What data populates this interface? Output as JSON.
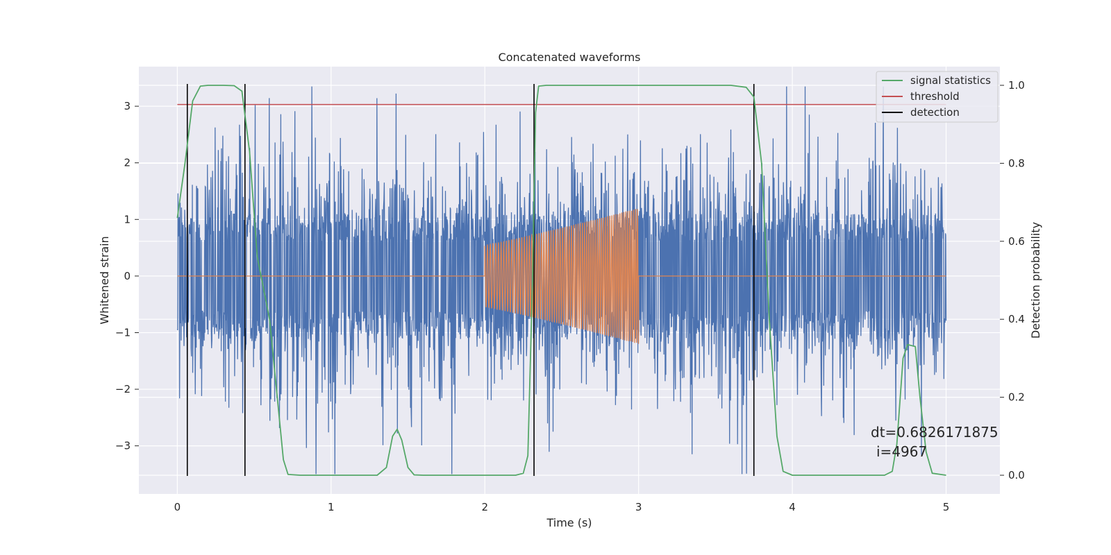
{
  "chart_data": {
    "type": "line",
    "title": "Concatenated waveforms",
    "xlabel": "Time (s)",
    "ylabel": "Whitened strain",
    "y2label": "Detection probability",
    "xlim": [
      -0.25,
      5.35
    ],
    "ylim": [
      -3.85,
      3.7
    ],
    "y2lim": [
      -0.048,
      1.048
    ],
    "xticks": [
      0,
      1,
      2,
      3,
      4,
      5
    ],
    "yticks": [
      -3,
      -2,
      -1,
      0,
      1,
      2,
      3
    ],
    "y2ticks": [
      0.0,
      0.2,
      0.4,
      0.6,
      0.8,
      1.0
    ],
    "x_tick_labels": [
      "0",
      "1",
      "2",
      "3",
      "4",
      "5"
    ],
    "y_tick_labels": [
      "−3",
      "−2",
      "−1",
      "0",
      "1",
      "2",
      "3"
    ],
    "y2_tick_labels": [
      "0.0",
      "0.2",
      "0.4",
      "0.6",
      "0.8",
      "1.0"
    ],
    "grid": true,
    "legend_position": "top-right",
    "legend": [
      "signal statistics",
      "threshold",
      "detection"
    ],
    "colors": {
      "noise": "#4c72b0",
      "signal": "#dd8452",
      "statistics": "#55a868",
      "threshold": "#c44e52",
      "detection": "#000000",
      "background": "#eaeaf2",
      "grid": "#ffffff"
    },
    "noise": {
      "x_range": [
        0,
        5
      ],
      "envelope": 2.6
    },
    "signal": {
      "x_range": [
        0,
        5
      ],
      "chirp_range": [
        2.0,
        3.0
      ],
      "amplitude_start": 0.55,
      "amplitude_end": 1.2
    },
    "threshold": {
      "x": [
        0,
        5
      ],
      "y": [
        3.03,
        3.03
      ]
    },
    "detections": [
      0.065,
      0.44,
      2.32,
      3.75
    ],
    "statistics": {
      "x": [
        0.0,
        0.05,
        0.1,
        0.15,
        0.2,
        0.3,
        0.37,
        0.42,
        0.47,
        0.52,
        0.6,
        0.65,
        0.69,
        0.72,
        0.8,
        1.0,
        1.3,
        1.36,
        1.4,
        1.43,
        1.46,
        1.5,
        1.54,
        1.6,
        2.0,
        2.2,
        2.25,
        2.28,
        2.31,
        2.33,
        2.35,
        2.4,
        3.0,
        3.6,
        3.7,
        3.75,
        3.8,
        3.85,
        3.9,
        3.94,
        4.0,
        4.3,
        4.6,
        4.65,
        4.68,
        4.72,
        4.75,
        4.8,
        4.83,
        4.87,
        4.91,
        5.0
      ],
      "y": [
        0.66,
        0.8,
        0.96,
        0.998,
        1.0,
        1.0,
        0.999,
        0.985,
        0.83,
        0.56,
        0.4,
        0.2,
        0.04,
        0.002,
        0.0,
        0.0,
        0.0,
        0.02,
        0.1,
        0.118,
        0.09,
        0.02,
        0.001,
        0.0,
        0.0,
        0.0,
        0.005,
        0.05,
        0.5,
        0.93,
        0.998,
        1.0,
        1.0,
        1.0,
        0.995,
        0.97,
        0.8,
        0.4,
        0.1,
        0.01,
        0.0,
        0.0,
        0.0,
        0.01,
        0.08,
        0.3,
        0.335,
        0.33,
        0.2,
        0.06,
        0.005,
        0.0
      ]
    },
    "annotation": [
      "dt=0.6826171875",
      "i=4967"
    ]
  }
}
